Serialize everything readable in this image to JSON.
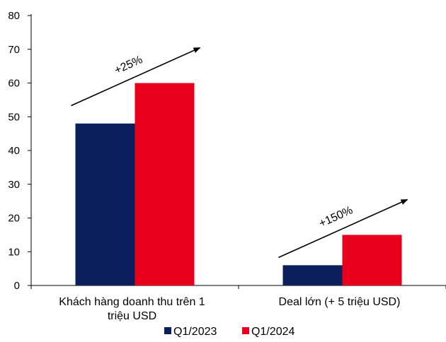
{
  "chart_data": {
    "type": "bar",
    "title": "",
    "xlabel": "",
    "ylabel": "",
    "ylim": [
      0,
      80
    ],
    "yticks": [
      0,
      10,
      20,
      30,
      40,
      50,
      60,
      70,
      80
    ],
    "grid": false,
    "legend_position": "bottom",
    "categories": [
      [
        "Khách hàng doanh thu trên 1",
        "triệu USD"
      ],
      [
        "Deal lớn (+ 5 triệu USD)"
      ]
    ],
    "series": [
      {
        "name": "Q1/2023",
        "color": "#0a1f5c",
        "values": [
          48,
          6
        ]
      },
      {
        "name": "Q1/2024",
        "color": "#e8001c",
        "values": [
          60,
          15
        ]
      }
    ],
    "annotations": [
      {
        "text": "+25%",
        "category_index": 0
      },
      {
        "text": "+150%",
        "category_index": 1
      }
    ]
  }
}
